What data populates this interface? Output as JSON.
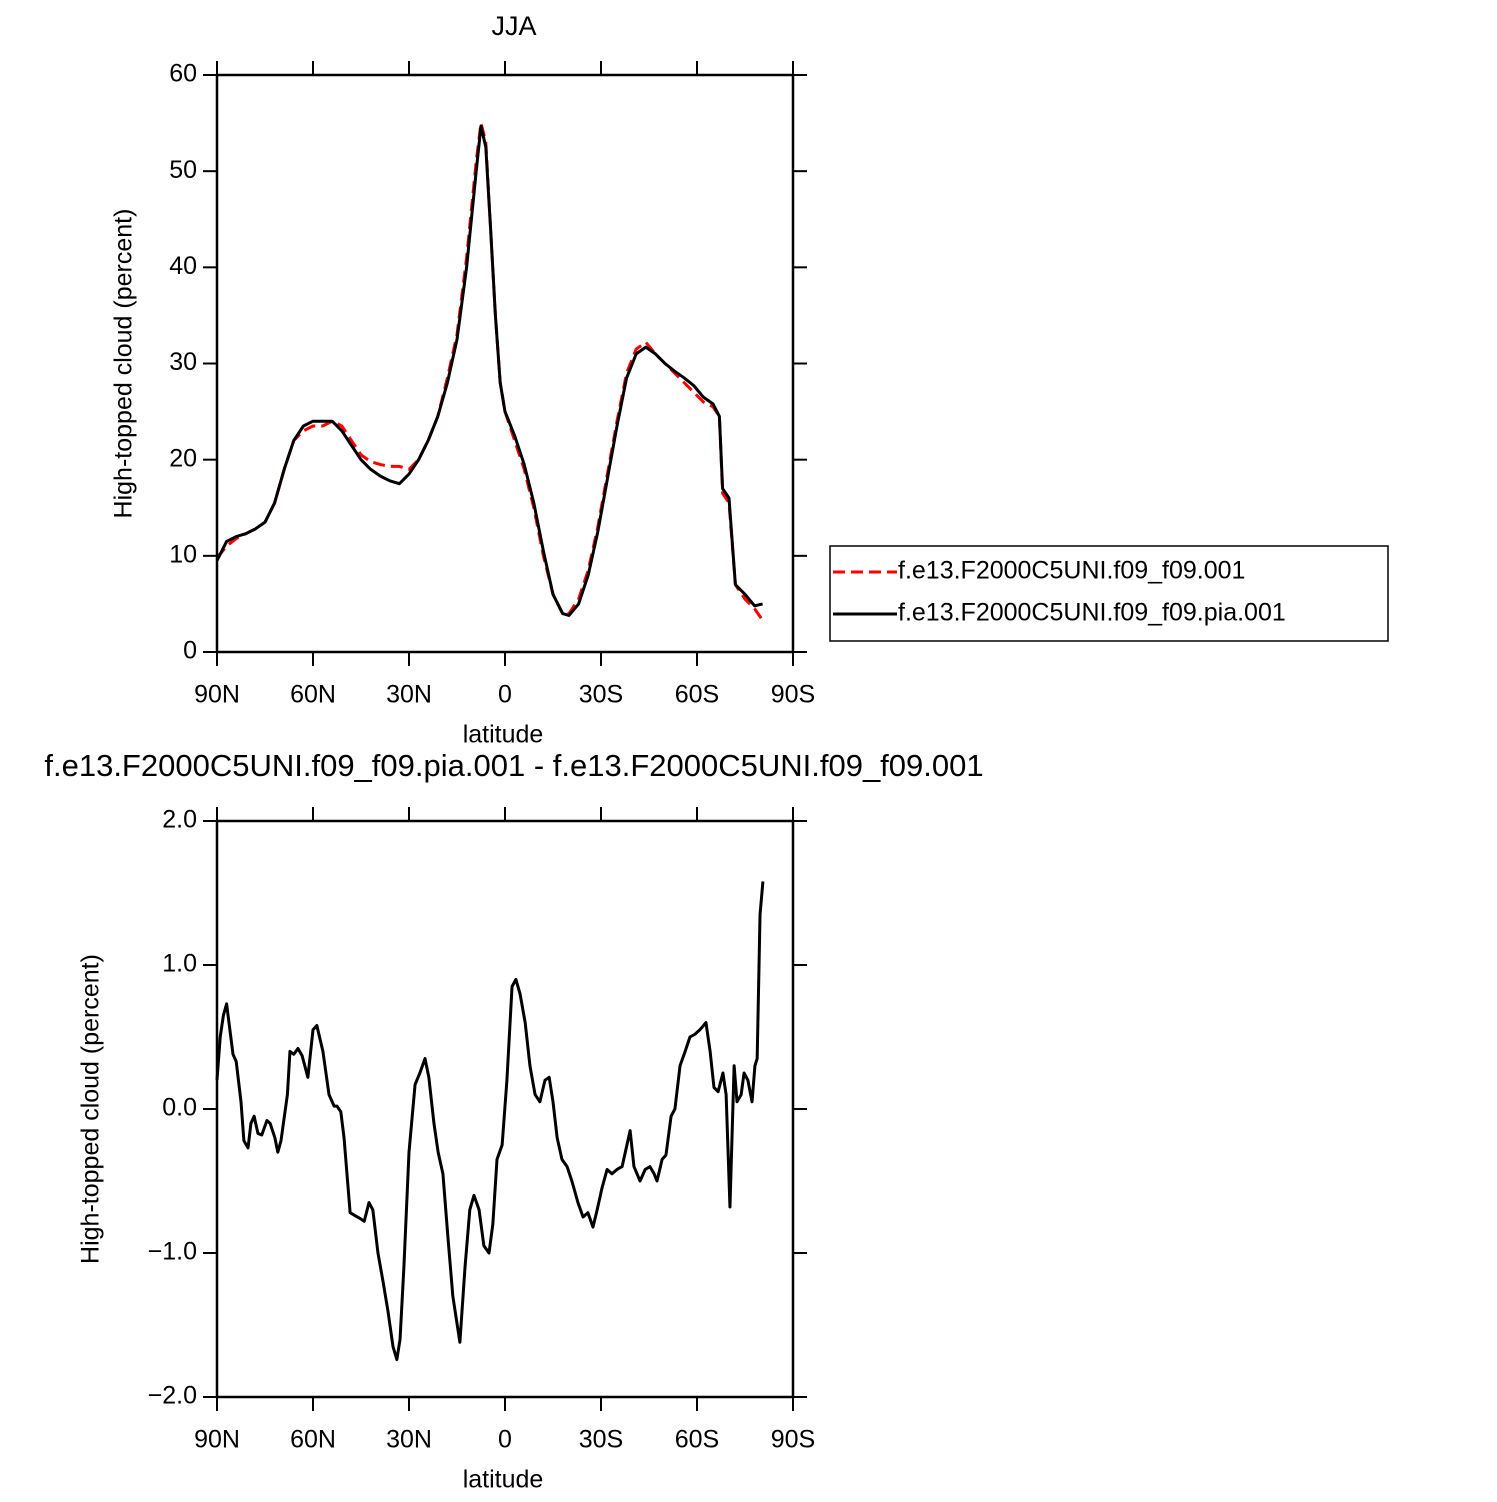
{
  "chart_data": [
    {
      "type": "line",
      "title": "JJA",
      "xlabel": "latitude",
      "ylabel": "High-topped cloud (percent)",
      "x": [
        90,
        87,
        84,
        81,
        78,
        75,
        72,
        69,
        66,
        63,
        60,
        57,
        54,
        51,
        48,
        45,
        42,
        39,
        36,
        33,
        30,
        27,
        24,
        21,
        18,
        15,
        12,
        9,
        7.5,
        6,
        4.5,
        3,
        1.5,
        0,
        -3,
        -6,
        -9,
        -12,
        -15,
        -18,
        -20,
        -23,
        -26,
        -29,
        -32,
        -35,
        -38,
        -41,
        -44,
        -47,
        -50,
        -53,
        -56,
        -59,
        -62,
        -65,
        -67,
        -68,
        -70,
        -72,
        -75,
        -78,
        -80.5
      ],
      "series": [
        {
          "name": "f.e13.F2000C5UNI.f09_f09.001",
          "color": "#ff0000",
          "dashed": true,
          "values": [
            9.8,
            11,
            11.8,
            12.3,
            12.8,
            13.5,
            15.5,
            19,
            22,
            23,
            23.5,
            23.5,
            24,
            23.5,
            22,
            20.5,
            19.8,
            19.5,
            19.3,
            19.3,
            19,
            20,
            22,
            24.5,
            28.5,
            33,
            41,
            51,
            55,
            53,
            44,
            35,
            28,
            25,
            22,
            19,
            15,
            10,
            6,
            4,
            4,
            5.5,
            8.5,
            13,
            18.5,
            24,
            29,
            31.5,
            32.2,
            31,
            30,
            29,
            28,
            27,
            26,
            25.5,
            24.5,
            16.5,
            15.5,
            7,
            5.5,
            4.5,
            3.3
          ]
        },
        {
          "name": "f.e13.F2000C5UNI.f09_f09.pia.001",
          "color": "#000000",
          "dashed": false,
          "values": [
            9.5,
            11.5,
            12,
            12.3,
            12.8,
            13.5,
            15.5,
            19,
            22,
            23.5,
            24,
            24,
            24,
            23,
            21.5,
            20,
            19,
            18.3,
            17.8,
            17.5,
            18.5,
            20,
            22,
            24.5,
            28,
            32.5,
            40,
            50,
            54.7,
            52.5,
            44,
            35,
            28,
            25,
            22.5,
            19.5,
            15.5,
            10.5,
            6,
            4,
            3.8,
            5,
            8,
            12.5,
            18,
            23.5,
            28.5,
            31,
            31.7,
            31,
            30,
            29.2,
            28.5,
            27.7,
            26.5,
            25.8,
            24.5,
            17,
            16,
            7,
            6,
            4.8,
            5
          ]
        }
      ],
      "xlim": [
        90,
        -90
      ],
      "ylim": [
        0,
        60
      ],
      "xticks": [
        {
          "value": 90,
          "label": "90N"
        },
        {
          "value": 60,
          "label": "60N"
        },
        {
          "value": 30,
          "label": "30N"
        },
        0,
        {
          "value": -30,
          "label": "30S"
        },
        {
          "value": -60,
          "label": "60S"
        },
        {
          "value": -90,
          "label": "90S"
        }
      ],
      "yticks": [
        0,
        10,
        20,
        30,
        40,
        50,
        60
      ],
      "legend": "right"
    },
    {
      "type": "line",
      "title": "f.e13.F2000C5UNI.f09_f09.pia.001 - f.e13.F2000C5UNI.f09_f09.001",
      "xlabel": "latitude",
      "ylabel": "High-topped cloud (percent)",
      "x": [
        90,
        89,
        88,
        87,
        85,
        84,
        82.5,
        81.6,
        80.3,
        79.4,
        78.4,
        77.2,
        76,
        74.4,
        73.4,
        71.9,
        71,
        70,
        68,
        67.2,
        66,
        64.7,
        63.4,
        61.6,
        60,
        58.8,
        56.9,
        55,
        53.4,
        52.5,
        51.3,
        50.3,
        48.4,
        46.9,
        45.3,
        44,
        42.5,
        41.3,
        39.7,
        38.1,
        36.6,
        35,
        33.8,
        32.8,
        31.6,
        30,
        28.1,
        26.6,
        25,
        23.8,
        22.2,
        20.9,
        19.4,
        17.8,
        16.3,
        14.1,
        12.5,
        11,
        9.7,
        8.1,
        6.6,
        5,
        3.8,
        2.5,
        0.9,
        -0.6,
        -2.2,
        -3.4,
        -4.7,
        -6.3,
        -7.8,
        -9.4,
        -10.9,
        -12.5,
        -13.8,
        -15,
        -16.3,
        -17.8,
        -19.4,
        -20.9,
        -22.8,
        -24.4,
        -25.9,
        -27.5,
        -28.8,
        -30.3,
        -31.9,
        -33.4,
        -35,
        -36.6,
        -38.1,
        -39.1,
        -40.3,
        -42.2,
        -43.8,
        -45.3,
        -46.6,
        -47.5,
        -49.1,
        -50.3,
        -51.9,
        -53.1,
        -54.7,
        -56.3,
        -57.8,
        -59.4,
        -60.9,
        -62.8,
        -64.1,
        -65.3,
        -66.6,
        -68.1,
        -69.1,
        -70.3,
        -71.6,
        -72.5,
        -73.8,
        -74.7,
        -75.9,
        -77.2,
        -78.1,
        -78.8,
        -79.7,
        -80.6
      ],
      "series": [
        {
          "color": "#000000",
          "dashed": false,
          "values": [
            0.2,
            0.5,
            0.65,
            0.73,
            0.38,
            0.33,
            0.05,
            -0.22,
            -0.27,
            -0.1,
            -0.05,
            -0.17,
            -0.18,
            -0.08,
            -0.1,
            -0.2,
            -0.3,
            -0.22,
            0.1,
            0.4,
            0.38,
            0.42,
            0.37,
            0.22,
            0.55,
            0.58,
            0.4,
            0.1,
            0.02,
            0.02,
            -0.02,
            -0.2,
            -0.72,
            -0.74,
            -0.76,
            -0.78,
            -0.65,
            -0.7,
            -1.0,
            -1.2,
            -1.4,
            -1.65,
            -1.74,
            -1.6,
            -1.1,
            -0.3,
            0.17,
            0.25,
            0.35,
            0.22,
            -0.1,
            -0.3,
            -0.45,
            -0.9,
            -1.3,
            -1.62,
            -1.1,
            -0.7,
            -0.6,
            -0.7,
            -0.95,
            -1.0,
            -0.8,
            -0.35,
            -0.25,
            0.2,
            0.85,
            0.9,
            0.8,
            0.6,
            0.3,
            0.1,
            0.05,
            0.2,
            0.22,
            0.05,
            -0.2,
            -0.35,
            -0.4,
            -0.5,
            -0.65,
            -0.75,
            -0.72,
            -0.82,
            -0.7,
            -0.55,
            -0.42,
            -0.45,
            -0.42,
            -0.4,
            -0.25,
            -0.15,
            -0.4,
            -0.5,
            -0.42,
            -0.4,
            -0.45,
            -0.5,
            -0.35,
            -0.32,
            -0.05,
            0.0,
            0.3,
            0.4,
            0.5,
            0.52,
            0.55,
            0.6,
            0.4,
            0.15,
            0.12,
            0.25,
            0.1,
            -0.68,
            0.3,
            0.05,
            0.1,
            0.25,
            0.2,
            0.05,
            0.3,
            0.35,
            1.35,
            1.58
          ]
        }
      ],
      "xlim": [
        90,
        -90
      ],
      "ylim": [
        -2,
        2
      ],
      "xticks": [
        {
          "value": 90,
          "label": "90N"
        },
        {
          "value": 60,
          "label": "60N"
        },
        {
          "value": 30,
          "label": "30N"
        },
        0,
        {
          "value": -30,
          "label": "30S"
        },
        {
          "value": -60,
          "label": "60S"
        },
        {
          "value": -90,
          "label": "90S"
        }
      ],
      "yticks": [
        {
          "value": -2,
          "label": "−2.0"
        },
        {
          "value": -1,
          "label": "−1.0"
        },
        {
          "value": 0,
          "label": "0.0"
        },
        {
          "value": 1,
          "label": "1.0"
        },
        {
          "value": 2,
          "label": "2.0"
        }
      ]
    }
  ]
}
